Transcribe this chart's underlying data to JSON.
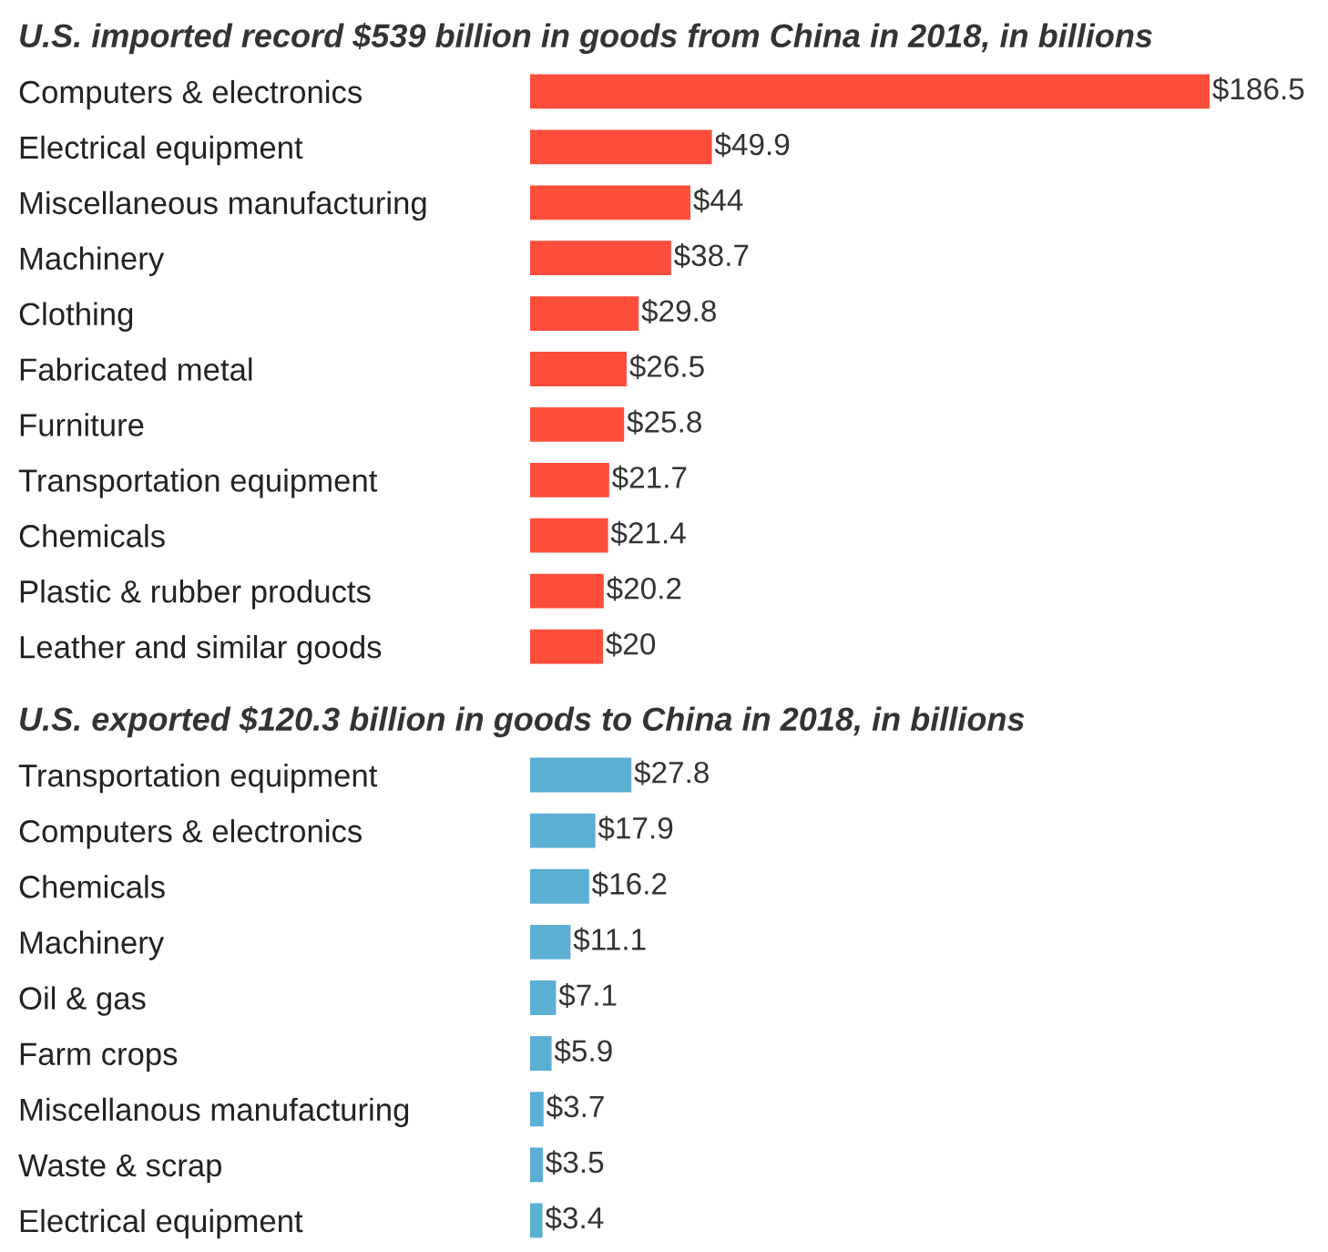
{
  "chart_data": [
    {
      "type": "bar",
      "orientation": "horizontal",
      "title": "U.S. imported record $539 billion in goods from China in 2018, in billions",
      "categories": [
        "Computers & electronics",
        "Electrical equipment",
        "Miscellaneous manufacturing",
        "Machinery",
        "Clothing",
        "Fabricated metal",
        "Furniture",
        "Transportation equipment",
        "Chemicals",
        "Plastic & rubber products",
        "Leather and similar goods"
      ],
      "values": [
        186.5,
        49.9,
        44,
        38.7,
        29.8,
        26.5,
        25.8,
        21.7,
        21.4,
        20.2,
        20
      ],
      "value_labels": [
        "$186.5",
        "$49.9",
        "$44",
        "$38.7",
        "$29.8",
        "$26.5",
        "$25.8",
        "$21.7",
        "$21.4",
        "$20.2",
        "$20"
      ],
      "color": "#fd4d3b",
      "tick_labels": "y",
      "grid": false
    },
    {
      "type": "bar",
      "orientation": "horizontal",
      "title": "U.S. exported $120.3 billion in goods to China in 2018, in billions",
      "categories": [
        "Transportation equipment",
        "Computers & electronics",
        "Chemicals",
        "Machinery",
        "Oil & gas",
        "Farm crops",
        "Miscellanous manufacturing",
        "Waste & scrap",
        "Electrical equipment"
      ],
      "values": [
        27.8,
        17.9,
        16.2,
        11.1,
        7.1,
        5.9,
        3.7,
        3.5,
        3.4
      ],
      "value_labels": [
        "$27.8",
        "$17.9",
        "$16.2",
        "$11.1",
        "$7.1",
        "$5.9",
        "$3.7",
        "$3.5",
        "$3.4"
      ],
      "color": "#5aafd2",
      "tick_labels": "y",
      "grid": false
    }
  ]
}
